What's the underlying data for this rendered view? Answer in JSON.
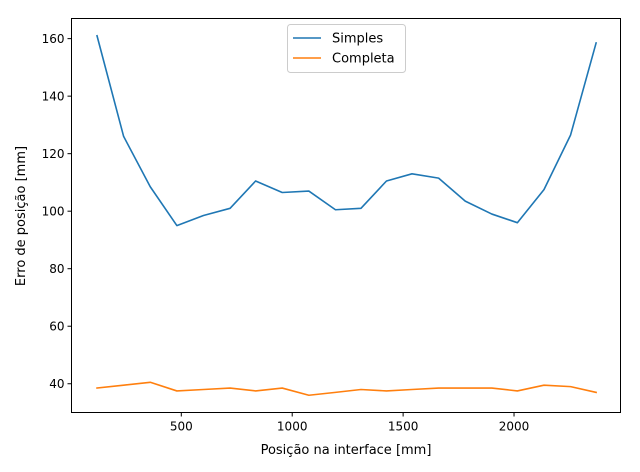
{
  "chart_data": {
    "type": "line",
    "title": "",
    "xlabel": "Posição na interface [mm]",
    "ylabel": "Erro de posição [mm]",
    "xlim": [
      5,
      2480
    ],
    "ylim": [
      30,
      167
    ],
    "xticks": [
      500,
      1000,
      1500,
      2000
    ],
    "yticks": [
      40,
      60,
      80,
      100,
      120,
      140,
      160
    ],
    "grid": false,
    "legend_position": "top-center",
    "x": [
      120,
      240,
      360,
      480,
      600,
      720,
      835,
      955,
      1075,
      1195,
      1310,
      1425,
      1540,
      1660,
      1780,
      1900,
      2015,
      2135,
      2255,
      2370
    ],
    "series": [
      {
        "name": "Simples",
        "color": "#1f77b4",
        "values": [
          161,
          126,
          108.5,
          95,
          98.5,
          101,
          110.5,
          106.5,
          107,
          100.5,
          101,
          110.5,
          113,
          111.5,
          103.5,
          99,
          96,
          107.5,
          126.5,
          158.5
        ]
      },
      {
        "name": "Completa",
        "color": "#ff7f0e",
        "values": [
          38.5,
          39.5,
          40.5,
          37.5,
          38,
          38.5,
          37.5,
          38.5,
          36,
          37,
          38,
          37.5,
          38,
          38.5,
          38.5,
          38.5,
          37.5,
          39.5,
          39,
          37
        ]
      }
    ]
  }
}
